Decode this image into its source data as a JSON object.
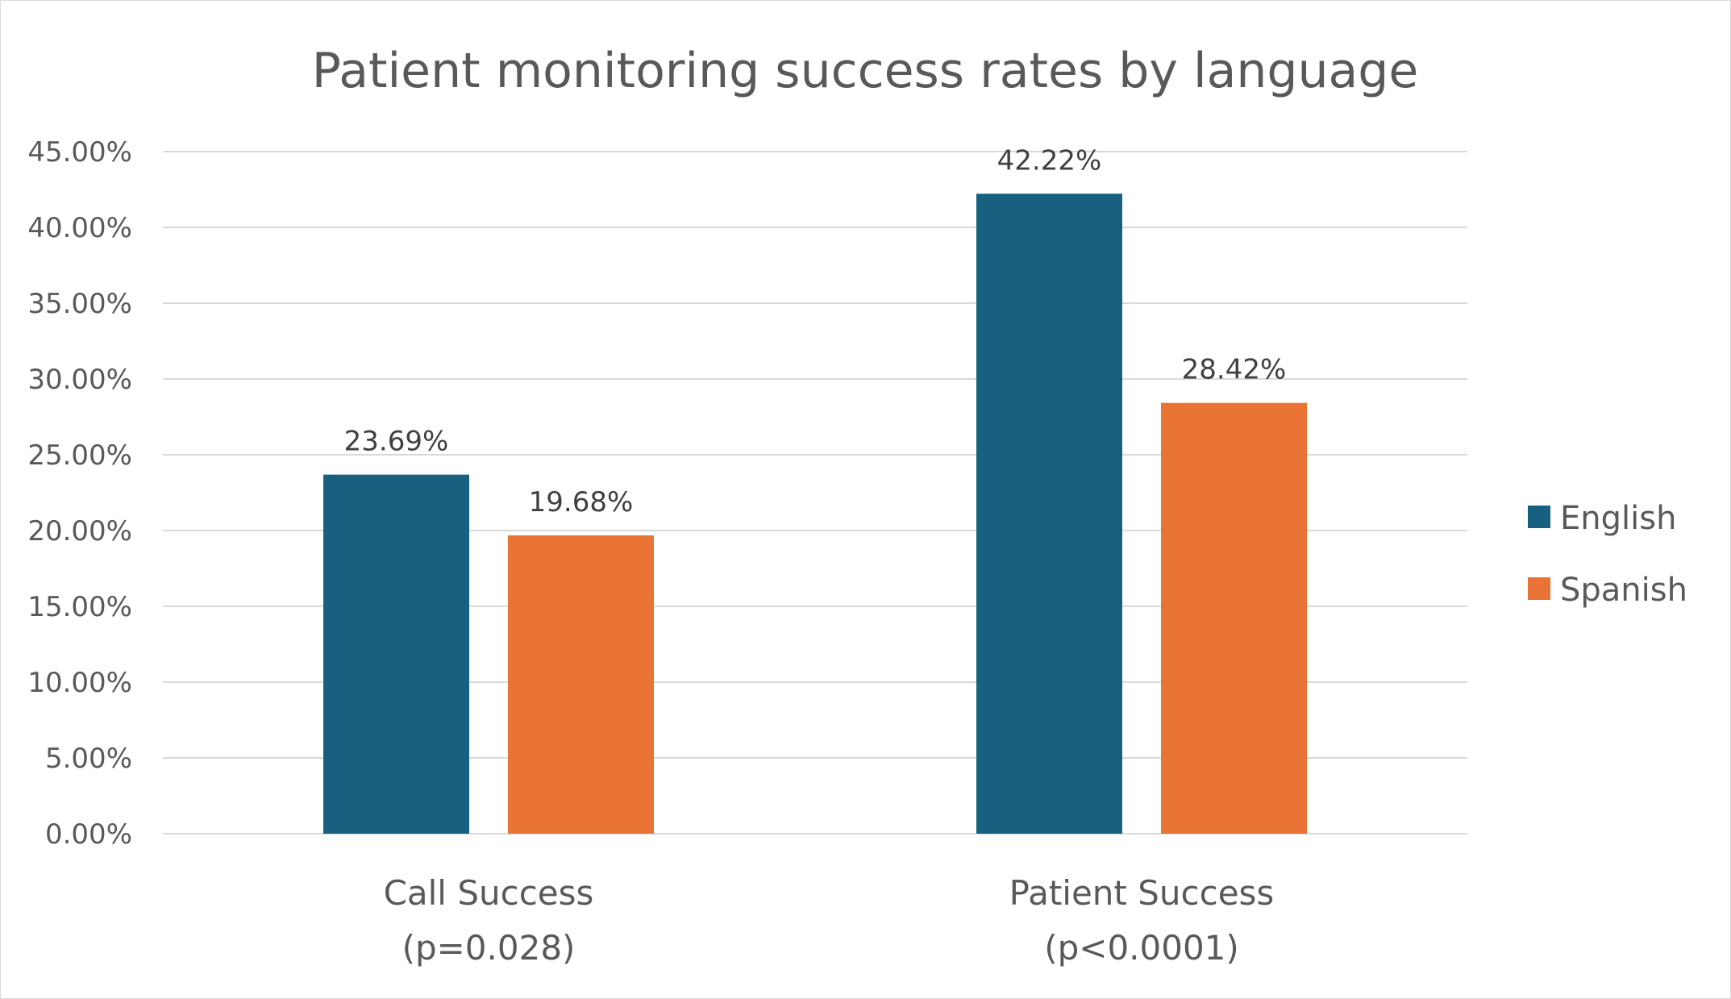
{
  "chart_data": {
    "type": "bar",
    "title": "Patient monitoring success rates by language",
    "xlabel": "",
    "ylabel": "",
    "categories": [
      [
        "Call Success",
        "(p=0.028)"
      ],
      [
        "Patient Success",
        "(p<0.0001)"
      ]
    ],
    "series": [
      {
        "name": "English",
        "color": "#17607f",
        "values": [
          23.69,
          42.22
        ],
        "labels": [
          "23.69%",
          "42.22%"
        ]
      },
      {
        "name": "Spanish",
        "color": "#e87334",
        "values": [
          19.68,
          28.42
        ],
        "labels": [
          "19.68%",
          "28.42%"
        ]
      }
    ],
    "ylim": [
      0,
      45
    ],
    "yticks": [
      0,
      5,
      10,
      15,
      20,
      25,
      30,
      35,
      40,
      45
    ],
    "ytick_labels": [
      "0.00%",
      "5.00%",
      "10.00%",
      "15.00%",
      "20.00%",
      "25.00%",
      "30.00%",
      "35.00%",
      "40.00%",
      "45.00%"
    ],
    "grid": true,
    "legend_position": "right"
  }
}
